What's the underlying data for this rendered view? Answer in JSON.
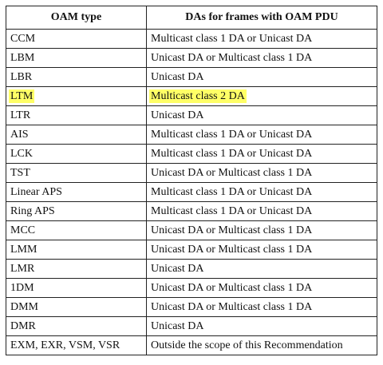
{
  "table": {
    "headers": [
      "OAM type",
      "DAs for frames with OAM PDU"
    ],
    "highlight_color": "#ffff66",
    "rows": [
      {
        "type": "CCM",
        "da": "Multicast class 1 DA or Unicast DA"
      },
      {
        "type": "LBM",
        "da": "Unicast DA or Multicast class 1 DA"
      },
      {
        "type": "LBR",
        "da": "Unicast DA"
      },
      {
        "type": "LTM",
        "da": "Multicast class 2 DA",
        "highlighted": true
      },
      {
        "type": "LTR",
        "da": "Unicast DA"
      },
      {
        "type": "AIS",
        "da": "Multicast class 1 DA or Unicast DA"
      },
      {
        "type": "LCK",
        "da": "Multicast class 1 DA or Unicast DA"
      },
      {
        "type": "TST",
        "da": "Unicast DA or Multicast class 1 DA"
      },
      {
        "type": "Linear APS",
        "da": "Multicast class 1 DA or Unicast DA"
      },
      {
        "type": "Ring APS",
        "da": "Multicast class 1 DA or Unicast DA"
      },
      {
        "type": "MCC",
        "da": "Unicast DA or Multicast class 1 DA"
      },
      {
        "type": "LMM",
        "da": "Unicast DA or Multicast class 1 DA"
      },
      {
        "type": "LMR",
        "da": "Unicast DA"
      },
      {
        "type": "1DM",
        "da": "Unicast DA or Multicast class 1 DA"
      },
      {
        "type": "DMM",
        "da": "Unicast DA or Multicast class 1 DA"
      },
      {
        "type": "DMR",
        "da": "Unicast DA"
      },
      {
        "type": "EXM, EXR, VSM, VSR",
        "da": "Outside the scope of this Recommendation"
      }
    ]
  }
}
